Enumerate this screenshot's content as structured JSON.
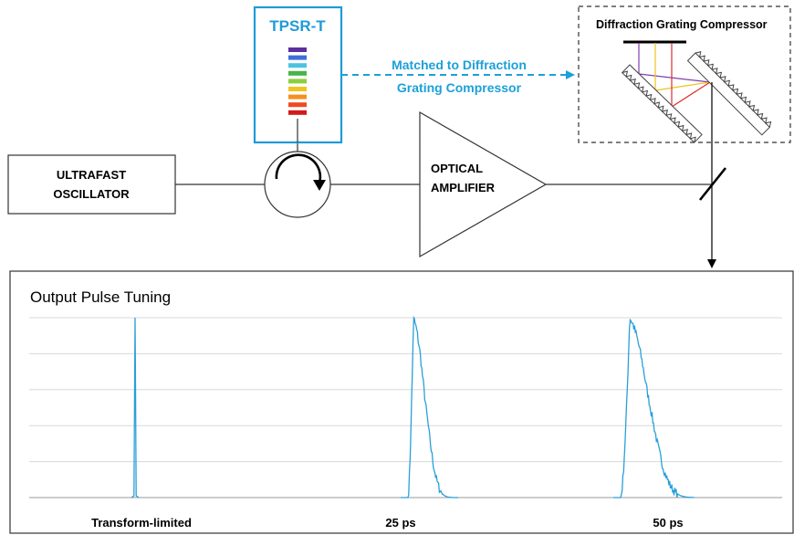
{
  "diagram": {
    "tpsr": {
      "title": "TPSR-T",
      "bar_colors": [
        "#5b2fa0",
        "#3f6fd8",
        "#4cc4e0",
        "#47b34a",
        "#8ccf3c",
        "#f3c31a",
        "#f5901e",
        "#ee4b1f",
        "#d21a1a"
      ]
    },
    "matched_note": {
      "line1": "Matched to Diffraction",
      "line2": "Grating Compressor",
      "color": "#1ca0d9"
    },
    "compressor": {
      "title": "Diffraction Grating Compressor",
      "ray_colors": [
        "#7b3fb0",
        "#f0c21b",
        "#e02a2a"
      ]
    },
    "oscillator": {
      "line1": "ULTRAFAST",
      "line2": "OSCILLATOR"
    },
    "amplifier": {
      "line1": "OPTICAL",
      "line2": "AMPLIFIER"
    }
  },
  "chart_data": {
    "type": "line",
    "title": "Output Pulse Tuning",
    "xlabel": "",
    "ylabel": "",
    "grid": true,
    "line_color": "#2a9fd8",
    "ylim": [
      0,
      1
    ],
    "pulses": [
      {
        "label": "Transform-limited",
        "center": 0,
        "peak": 1.0
      },
      {
        "label": "25 ps",
        "center": 25,
        "peak": 1.0
      },
      {
        "label": "50 ps",
        "center": 50,
        "peak": 1.0
      }
    ]
  }
}
